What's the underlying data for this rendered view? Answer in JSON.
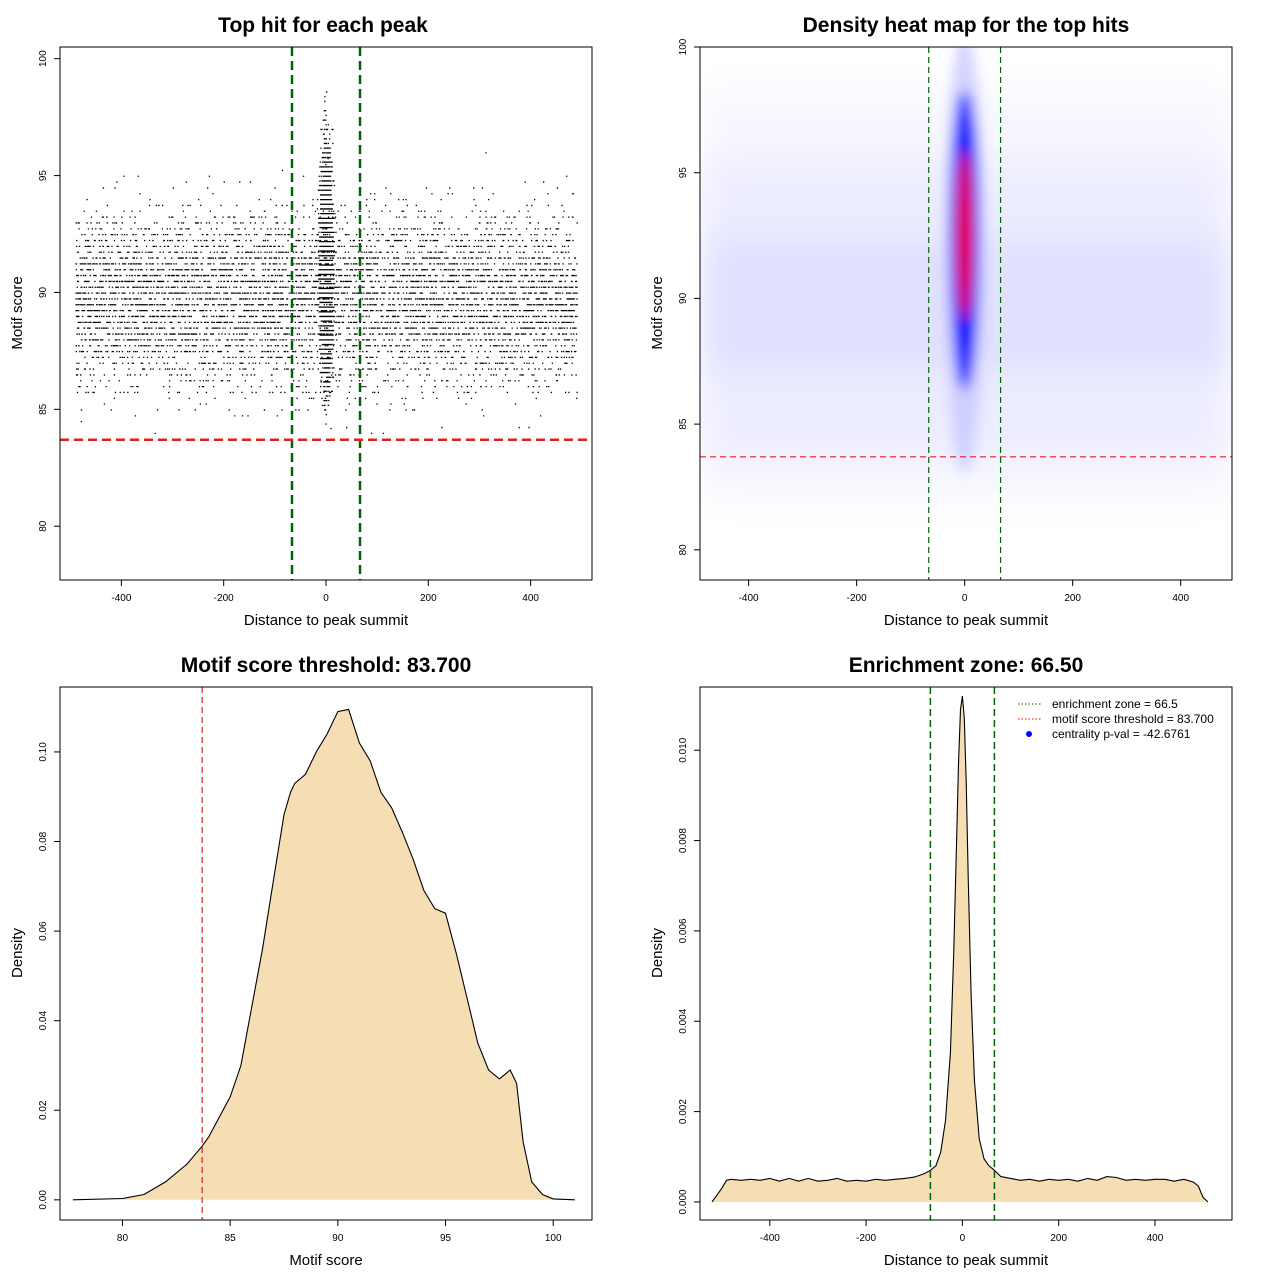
{
  "chart_data": [
    {
      "type": "scatter",
      "title": "Top hit for each peak",
      "xlabel": "Distance to peak summit",
      "ylabel": "Motif score",
      "xlim": [
        -520,
        520
      ],
      "ylim": [
        77.7,
        100.5
      ],
      "xticks": [
        -400,
        -200,
        0,
        200,
        400
      ],
      "yticks": [
        80,
        85,
        90,
        95,
        100
      ],
      "grid": false,
      "reference_lines": {
        "vertical": [
          -66.5,
          66.5
        ],
        "horizontal": [
          83.7
        ]
      },
      "scatter_summary": {
        "background_x_range": [
          -490,
          490
        ],
        "background_y_range": [
          80.5,
          98.6
        ],
        "central_cluster_x_range": [
          -20,
          20
        ],
        "central_cluster_y_range": [
          82,
          100
        ]
      }
    },
    {
      "type": "heatmap",
      "title": "Density heat map for the top hits",
      "xlabel": "Distance to peak summit",
      "ylabel": "Motif score",
      "xlim": [
        -490,
        495
      ],
      "ylim": [
        78.8,
        100
      ],
      "xticks": [
        -400,
        -200,
        0,
        200,
        400
      ],
      "yticks": [
        80,
        85,
        90,
        95,
        100
      ],
      "grid": false,
      "color_scale": [
        "#ffffff",
        "#0000ff",
        "#ff0000"
      ],
      "hotspot": {
        "x": 0,
        "y": 92.5
      },
      "reference_lines": {
        "vertical": [
          -66.5,
          66.5
        ],
        "horizontal": [
          83.7
        ]
      }
    },
    {
      "type": "area",
      "title": "Motif score threshold: 83.700",
      "xlabel": "Motif score",
      "ylabel": "Density",
      "xlim": [
        77.1,
        101.8
      ],
      "ylim": [
        -0.0045,
        0.1145
      ],
      "xticks": [
        80,
        85,
        90,
        95,
        100
      ],
      "yticks": [
        0.0,
        0.02,
        0.04,
        0.06,
        0.08,
        0.1
      ],
      "ytick_labels": [
        "0.00",
        "0.02",
        "0.04",
        "0.06",
        "0.08",
        "0.10"
      ],
      "grid": false,
      "fill_color": "#F5DEB3",
      "x": [
        77.7,
        80.0,
        81.0,
        82.0,
        83.0,
        83.7,
        84.0,
        85.0,
        85.5,
        86.0,
        86.5,
        87.0,
        87.5,
        87.8,
        88.0,
        88.5,
        89.0,
        89.5,
        90.0,
        90.5,
        91.0,
        91.5,
        92.0,
        92.5,
        93.0,
        93.5,
        94.0,
        94.5,
        95.0,
        95.5,
        96.0,
        96.5,
        97.0,
        97.5,
        98.0,
        98.3,
        98.6,
        99.0,
        99.5,
        100.0,
        101.0
      ],
      "values": [
        0.0,
        0.0003,
        0.0012,
        0.004,
        0.008,
        0.012,
        0.014,
        0.023,
        0.03,
        0.043,
        0.056,
        0.071,
        0.086,
        0.091,
        0.093,
        0.095,
        0.1,
        0.104,
        0.109,
        0.1095,
        0.102,
        0.098,
        0.091,
        0.0875,
        0.082,
        0.076,
        0.069,
        0.065,
        0.064,
        0.055,
        0.045,
        0.035,
        0.029,
        0.027,
        0.029,
        0.026,
        0.013,
        0.004,
        0.0012,
        0.0002,
        0.0
      ],
      "reference_lines": {
        "vertical": [
          83.7
        ]
      }
    },
    {
      "type": "area",
      "title": "Enrichment zone: 66.50",
      "xlabel": "Distance to peak summit",
      "ylabel": "Density",
      "xlim": [
        -545,
        560
      ],
      "ylim": [
        -0.0004,
        0.0114
      ],
      "xticks": [
        -400,
        -200,
        0,
        200,
        400
      ],
      "yticks": [
        0.0,
        0.002,
        0.004,
        0.006,
        0.008,
        0.01
      ],
      "ytick_labels": [
        "0.000",
        "0.002",
        "0.004",
        "0.006",
        "0.008",
        "0.010"
      ],
      "grid": false,
      "fill_color": "#F5DEB3",
      "x": [
        -520,
        -500,
        -490,
        -480,
        -460,
        -440,
        -420,
        -400,
        -380,
        -360,
        -340,
        -320,
        -300,
        -280,
        -260,
        -240,
        -220,
        -200,
        -180,
        -160,
        -140,
        -120,
        -100,
        -80,
        -66.5,
        -55,
        -45,
        -35,
        -25,
        -18,
        -12,
        -8,
        -4,
        0,
        4,
        8,
        12,
        18,
        25,
        35,
        45,
        55,
        66.5,
        80,
        100,
        120,
        140,
        160,
        180,
        200,
        220,
        240,
        260,
        280,
        300,
        320,
        340,
        360,
        380,
        400,
        420,
        440,
        460,
        480,
        490,
        500,
        510
      ],
      "values": [
        0.0,
        0.0003,
        0.00048,
        0.0005,
        0.00048,
        0.0005,
        0.00048,
        0.00052,
        0.00046,
        0.00052,
        0.00046,
        0.00052,
        0.00046,
        0.00048,
        0.00052,
        0.00046,
        0.00048,
        0.00046,
        0.0005,
        0.00048,
        0.0005,
        0.00052,
        0.00055,
        0.00062,
        0.0007,
        0.0008,
        0.0011,
        0.0018,
        0.0033,
        0.0055,
        0.008,
        0.0097,
        0.0109,
        0.0112,
        0.0107,
        0.0093,
        0.0072,
        0.0046,
        0.0027,
        0.0014,
        0.00095,
        0.0008,
        0.0007,
        0.00056,
        0.00052,
        0.00048,
        0.0005,
        0.00046,
        0.0005,
        0.00048,
        0.0005,
        0.00046,
        0.00052,
        0.00048,
        0.00056,
        0.00054,
        0.00048,
        0.0005,
        0.00048,
        0.0005,
        0.0005,
        0.00046,
        0.0005,
        0.00044,
        0.00035,
        0.0001,
        0.0
      ],
      "reference_lines": {
        "vertical": [
          -66.5,
          66.5
        ]
      },
      "legend": {
        "placement": "top-right",
        "entries": [
          {
            "label": "enrichment zone = 66.5",
            "color": "#006400",
            "style": "dotted"
          },
          {
            "label": "motif score threshold = 83.700",
            "color": "#ff0000",
            "style": "dotted"
          },
          {
            "label": "centrality p-val = -42.6761",
            "color": "#0000ff",
            "style": "point"
          }
        ]
      }
    }
  ]
}
